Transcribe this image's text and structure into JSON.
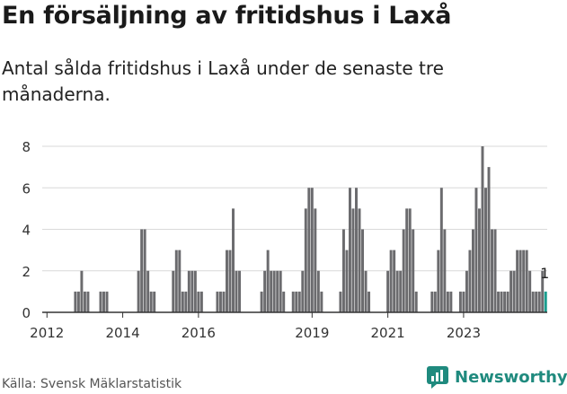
{
  "title": "En försäljning av fritidshus i Laxå",
  "subtitle": "Antal sålda fritidshus i Laxå under de senaste tre månaderna.",
  "source": "Källa: Svensk Mäklarstatistik",
  "brand": {
    "name": "Newsworthy",
    "color": "#1f8a7e"
  },
  "colors": {
    "bar": "#6b6b6e",
    "highlight": "#1a9e8f",
    "grid": "#d9d9d9"
  },
  "chart_data": {
    "type": "bar",
    "title": "",
    "xlabel": "",
    "ylabel": "",
    "ylim": [
      0,
      8
    ],
    "yticks": [
      0,
      2,
      4,
      6,
      8
    ],
    "x_start": "2011-12",
    "xticks": [
      {
        "label": "2012",
        "index": 1
      },
      {
        "label": "2014",
        "index": 25
      },
      {
        "label": "2016",
        "index": 49
      },
      {
        "label": "2019",
        "index": 85
      },
      {
        "label": "2021",
        "index": 109
      },
      {
        "label": "2023",
        "index": 133
      }
    ],
    "values": [
      0,
      0,
      0,
      0,
      0,
      0,
      0,
      0,
      0,
      0,
      1,
      1,
      2,
      1,
      1,
      0,
      0,
      0,
      1,
      1,
      1,
      0,
      0,
      0,
      0,
      0,
      0,
      0,
      0,
      0,
      2,
      4,
      4,
      2,
      1,
      1,
      0,
      0,
      0,
      0,
      0,
      2,
      3,
      3,
      1,
      1,
      2,
      2,
      2,
      1,
      1,
      0,
      0,
      0,
      0,
      1,
      1,
      1,
      3,
      3,
      5,
      2,
      2,
      0,
      0,
      0,
      0,
      0,
      0,
      1,
      2,
      3,
      2,
      2,
      2,
      2,
      1,
      0,
      0,
      1,
      1,
      1,
      2,
      5,
      6,
      6,
      5,
      2,
      1,
      0,
      0,
      0,
      0,
      0,
      1,
      4,
      3,
      6,
      5,
      6,
      5,
      4,
      2,
      1,
      0,
      0,
      0,
      0,
      0,
      2,
      3,
      3,
      2,
      2,
      4,
      5,
      5,
      4,
      1,
      0,
      0,
      0,
      0,
      1,
      1,
      3,
      6,
      4,
      1,
      1,
      0,
      0,
      1,
      1,
      2,
      3,
      4,
      6,
      5,
      8,
      6,
      7,
      4,
      4,
      1,
      1,
      1,
      1,
      2,
      2,
      3,
      3,
      3,
      3,
      2,
      1,
      1,
      1,
      2,
      1
    ],
    "highlight_last": true,
    "annotation": "1"
  }
}
